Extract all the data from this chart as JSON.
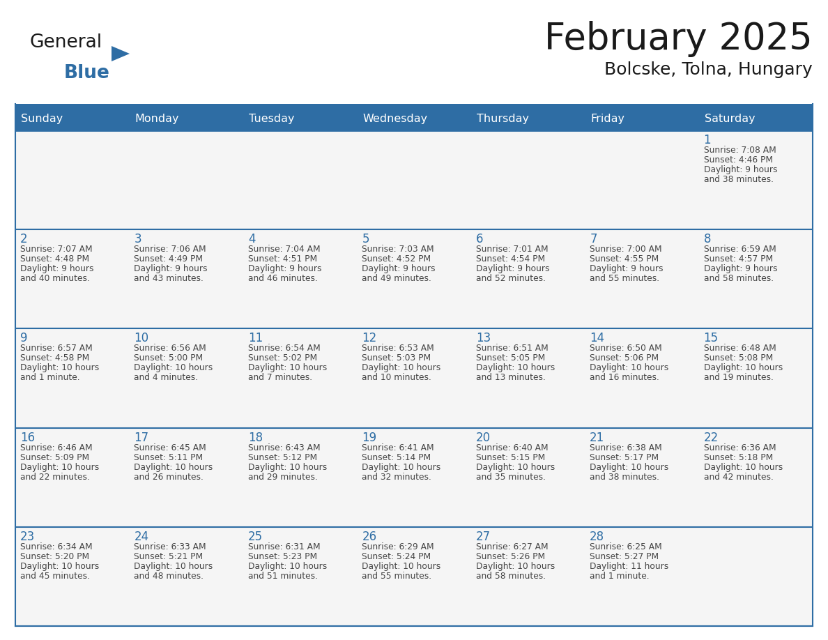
{
  "title": "February 2025",
  "subtitle": "Bolcske, Tolna, Hungary",
  "header_bg": "#2e6da4",
  "header_text_color": "#ffffff",
  "cell_bg": "#f5f5f5",
  "day_number_color": "#2e6da4",
  "text_color": "#444444",
  "line_color": "#2e6da4",
  "days_of_week": [
    "Sunday",
    "Monday",
    "Tuesday",
    "Wednesday",
    "Thursday",
    "Friday",
    "Saturday"
  ],
  "weeks": [
    [
      {
        "day": "",
        "info": ""
      },
      {
        "day": "",
        "info": ""
      },
      {
        "day": "",
        "info": ""
      },
      {
        "day": "",
        "info": ""
      },
      {
        "day": "",
        "info": ""
      },
      {
        "day": "",
        "info": ""
      },
      {
        "day": "1",
        "info": "Sunrise: 7:08 AM\nSunset: 4:46 PM\nDaylight: 9 hours\nand 38 minutes."
      }
    ],
    [
      {
        "day": "2",
        "info": "Sunrise: 7:07 AM\nSunset: 4:48 PM\nDaylight: 9 hours\nand 40 minutes."
      },
      {
        "day": "3",
        "info": "Sunrise: 7:06 AM\nSunset: 4:49 PM\nDaylight: 9 hours\nand 43 minutes."
      },
      {
        "day": "4",
        "info": "Sunrise: 7:04 AM\nSunset: 4:51 PM\nDaylight: 9 hours\nand 46 minutes."
      },
      {
        "day": "5",
        "info": "Sunrise: 7:03 AM\nSunset: 4:52 PM\nDaylight: 9 hours\nand 49 minutes."
      },
      {
        "day": "6",
        "info": "Sunrise: 7:01 AM\nSunset: 4:54 PM\nDaylight: 9 hours\nand 52 minutes."
      },
      {
        "day": "7",
        "info": "Sunrise: 7:00 AM\nSunset: 4:55 PM\nDaylight: 9 hours\nand 55 minutes."
      },
      {
        "day": "8",
        "info": "Sunrise: 6:59 AM\nSunset: 4:57 PM\nDaylight: 9 hours\nand 58 minutes."
      }
    ],
    [
      {
        "day": "9",
        "info": "Sunrise: 6:57 AM\nSunset: 4:58 PM\nDaylight: 10 hours\nand 1 minute."
      },
      {
        "day": "10",
        "info": "Sunrise: 6:56 AM\nSunset: 5:00 PM\nDaylight: 10 hours\nand 4 minutes."
      },
      {
        "day": "11",
        "info": "Sunrise: 6:54 AM\nSunset: 5:02 PM\nDaylight: 10 hours\nand 7 minutes."
      },
      {
        "day": "12",
        "info": "Sunrise: 6:53 AM\nSunset: 5:03 PM\nDaylight: 10 hours\nand 10 minutes."
      },
      {
        "day": "13",
        "info": "Sunrise: 6:51 AM\nSunset: 5:05 PM\nDaylight: 10 hours\nand 13 minutes."
      },
      {
        "day": "14",
        "info": "Sunrise: 6:50 AM\nSunset: 5:06 PM\nDaylight: 10 hours\nand 16 minutes."
      },
      {
        "day": "15",
        "info": "Sunrise: 6:48 AM\nSunset: 5:08 PM\nDaylight: 10 hours\nand 19 minutes."
      }
    ],
    [
      {
        "day": "16",
        "info": "Sunrise: 6:46 AM\nSunset: 5:09 PM\nDaylight: 10 hours\nand 22 minutes."
      },
      {
        "day": "17",
        "info": "Sunrise: 6:45 AM\nSunset: 5:11 PM\nDaylight: 10 hours\nand 26 minutes."
      },
      {
        "day": "18",
        "info": "Sunrise: 6:43 AM\nSunset: 5:12 PM\nDaylight: 10 hours\nand 29 minutes."
      },
      {
        "day": "19",
        "info": "Sunrise: 6:41 AM\nSunset: 5:14 PM\nDaylight: 10 hours\nand 32 minutes."
      },
      {
        "day": "20",
        "info": "Sunrise: 6:40 AM\nSunset: 5:15 PM\nDaylight: 10 hours\nand 35 minutes."
      },
      {
        "day": "21",
        "info": "Sunrise: 6:38 AM\nSunset: 5:17 PM\nDaylight: 10 hours\nand 38 minutes."
      },
      {
        "day": "22",
        "info": "Sunrise: 6:36 AM\nSunset: 5:18 PM\nDaylight: 10 hours\nand 42 minutes."
      }
    ],
    [
      {
        "day": "23",
        "info": "Sunrise: 6:34 AM\nSunset: 5:20 PM\nDaylight: 10 hours\nand 45 minutes."
      },
      {
        "day": "24",
        "info": "Sunrise: 6:33 AM\nSunset: 5:21 PM\nDaylight: 10 hours\nand 48 minutes."
      },
      {
        "day": "25",
        "info": "Sunrise: 6:31 AM\nSunset: 5:23 PM\nDaylight: 10 hours\nand 51 minutes."
      },
      {
        "day": "26",
        "info": "Sunrise: 6:29 AM\nSunset: 5:24 PM\nDaylight: 10 hours\nand 55 minutes."
      },
      {
        "day": "27",
        "info": "Sunrise: 6:27 AM\nSunset: 5:26 PM\nDaylight: 10 hours\nand 58 minutes."
      },
      {
        "day": "28",
        "info": "Sunrise: 6:25 AM\nSunset: 5:27 PM\nDaylight: 11 hours\nand 1 minute."
      },
      {
        "day": "",
        "info": ""
      }
    ]
  ],
  "logo_general_color": "#1a1a1a",
  "logo_blue_color": "#2e6da4",
  "figsize": [
    11.88,
    9.18
  ],
  "dpi": 100
}
